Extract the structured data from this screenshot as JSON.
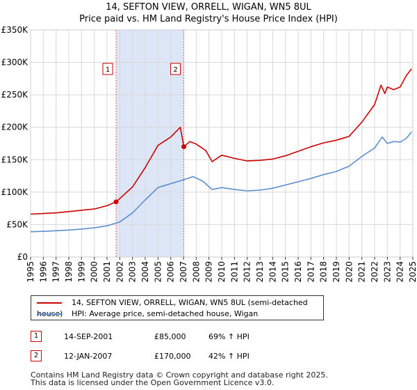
{
  "title_line1": "14, SEFTON VIEW, ORRELL, WIGAN, WN5 8UL",
  "title_line2": "Price paid vs. HM Land Registry's House Price Index (HPI)",
  "chart_data": {
    "type": "line",
    "x_range": [
      1995,
      2025
    ],
    "y_range": [
      0,
      350000
    ],
    "ytick_labels": [
      "£0",
      "£50K",
      "£100K",
      "£150K",
      "£200K",
      "£250K",
      "£300K",
      "£350K"
    ],
    "ytick_values": [
      0,
      50000,
      100000,
      150000,
      200000,
      250000,
      300000,
      350000
    ],
    "xtick_labels": [
      "1995",
      "1996",
      "1997",
      "1998",
      "1999",
      "2000",
      "2001",
      "2002",
      "2003",
      "2004",
      "2005",
      "2006",
      "2007",
      "2008",
      "2009",
      "2010",
      "2011",
      "2012",
      "2013",
      "2014",
      "2015",
      "2016",
      "2017",
      "2018",
      "2019",
      "2020",
      "2021",
      "2022",
      "2023",
      "2024",
      "2025"
    ],
    "grid": true,
    "highlight_span": [
      2001.71,
      2007.03
    ],
    "series": [
      {
        "name": "14, SEFTON VIEW, ORRELL, WIGAN, WN5 8UL (semi-detached house)",
        "color": "#cc0000",
        "x": [
          1995,
          1996,
          1997,
          1998,
          1999,
          2000,
          2001,
          2001.71,
          2002,
          2003,
          2004,
          2005,
          2006,
          2006.75,
          2007.03,
          2007.5,
          2008,
          2008.75,
          2009.25,
          2010,
          2011,
          2012,
          2013,
          2014,
          2015,
          2016,
          2017,
          2018,
          2019,
          2020,
          2021,
          2022,
          2022.5,
          2022.8,
          2023,
          2023.5,
          2024,
          2024.5,
          2024.9
        ],
        "values": [
          66000,
          67000,
          68000,
          70000,
          72000,
          74000,
          79000,
          85000,
          90000,
          108000,
          138000,
          172000,
          185000,
          200000,
          170000,
          178000,
          174000,
          164000,
          147000,
          157000,
          152000,
          148000,
          149000,
          151000,
          156000,
          163000,
          170000,
          176000,
          180000,
          186000,
          208000,
          235000,
          265000,
          252000,
          262000,
          258000,
          262000,
          280000,
          290000
        ]
      },
      {
        "name": "HPI: Average price, semi-detached house, Wigan",
        "color": "#5b8fd0",
        "x": [
          1995,
          1996,
          1997,
          1998,
          1999,
          2000,
          2001,
          2002,
          2003,
          2004,
          2005,
          2006,
          2007,
          2007.75,
          2008.5,
          2009.25,
          2010,
          2011,
          2012,
          2013,
          2014,
          2015,
          2016,
          2017,
          2018,
          2019,
          2020,
          2021,
          2022,
          2022.6,
          2023,
          2023.5,
          2024,
          2024.5,
          2024.9
        ],
        "values": [
          39000,
          39500,
          40500,
          41500,
          43000,
          45000,
          48000,
          54000,
          68000,
          88000,
          107000,
          113000,
          119000,
          124000,
          117000,
          104000,
          107000,
          104000,
          102000,
          103000,
          106000,
          111000,
          116000,
          121000,
          127000,
          132000,
          140000,
          155000,
          168000,
          185000,
          175000,
          178000,
          177000,
          183000,
          193000
        ]
      }
    ],
    "markers": [
      {
        "label": "1",
        "x": 2001.71,
        "y": 85000
      },
      {
        "label": "2",
        "x": 2007.03,
        "y": 170000
      }
    ]
  },
  "legend": [
    {
      "label": "14, SEFTON VIEW, ORRELL, WIGAN, WN5 8UL (semi-detached house)",
      "color": "#cc0000"
    },
    {
      "label": "HPI: Average price, semi-detached house, Wigan",
      "color": "#5b8fd0"
    }
  ],
  "transactions": [
    {
      "num": "1",
      "date": "14-SEP-2001",
      "price": "£85,000",
      "hpi": "69% ↑ HPI"
    },
    {
      "num": "2",
      "date": "12-JAN-2007",
      "price": "£170,000",
      "hpi": "42% ↑ HPI"
    }
  ],
  "footer_line1": "Contains HM Land Registry data © Crown copyright and database right 2025.",
  "footer_line2": "This data is licensed under the Open Government Licence v3.0."
}
